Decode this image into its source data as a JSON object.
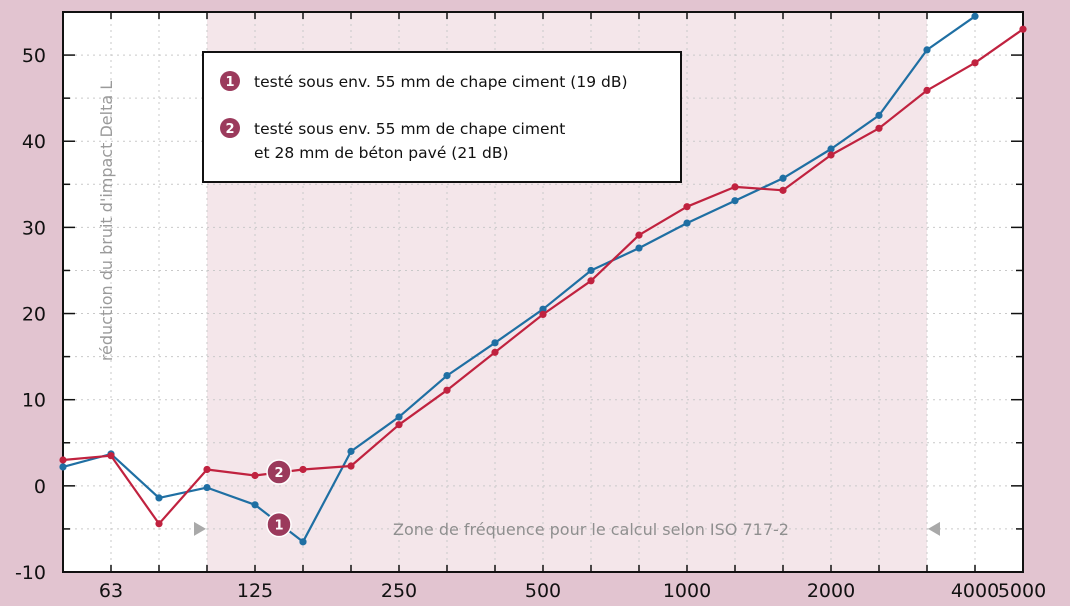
{
  "chart_data": {
    "type": "line",
    "ylabel": "réduction du bruit d'impact Delta L",
    "xlabel": "",
    "ylim": [
      -10,
      55
    ],
    "yticks": [
      -10,
      0,
      10,
      20,
      30,
      40,
      50
    ],
    "x": [
      50,
      63,
      80,
      100,
      125,
      160,
      200,
      250,
      315,
      400,
      500,
      630,
      800,
      1000,
      1250,
      1600,
      2000,
      2500,
      3150,
      4000,
      5000
    ],
    "xtick_labels": [
      "63",
      "125",
      "250",
      "500",
      "1000",
      "2000",
      "4000",
      "5000"
    ],
    "grid": true,
    "zone": {
      "label": "Zone de fréquence pour le calcul selon ISO 717-2",
      "from": 100,
      "to": 3150
    },
    "series": [
      {
        "name": "testé sous env. 55 mm de chape ciment (19 dB)",
        "badge": "1",
        "color": "#1f6fa3",
        "values": [
          2.2,
          3.7,
          -1.4,
          -0.2,
          -2.2,
          -6.5,
          4.0,
          8.0,
          12.8,
          16.6,
          20.5,
          25.0,
          27.6,
          30.5,
          33.1,
          35.7,
          39.1,
          43.0,
          50.6,
          54.5,
          null
        ]
      },
      {
        "name": "testé sous env. 55 mm de chape ciment",
        "name_line2": "et 28 mm de béton pavé (21 dB)",
        "badge": "2",
        "color": "#c0223f",
        "values": [
          3.0,
          3.5,
          -4.4,
          1.9,
          1.2,
          1.9,
          2.3,
          7.1,
          11.1,
          15.5,
          19.9,
          23.8,
          29.1,
          32.4,
          34.7,
          34.3,
          38.4,
          41.5,
          45.9,
          49.1,
          53.0
        ]
      }
    ]
  },
  "badge_color": "#9b3a5c"
}
